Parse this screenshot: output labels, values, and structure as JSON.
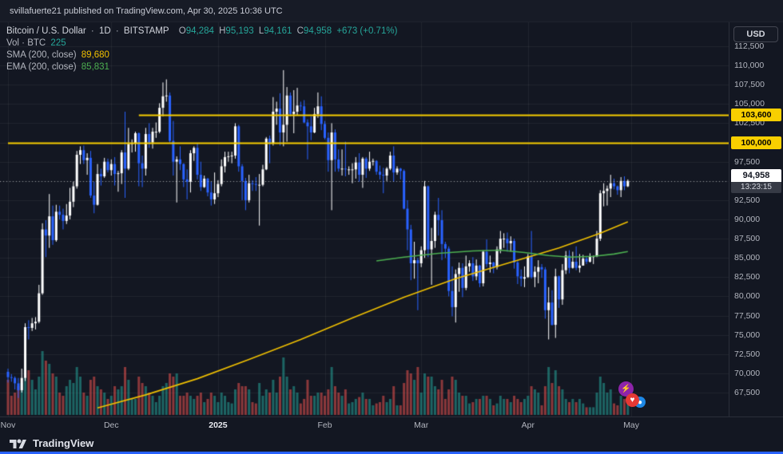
{
  "topbar": {
    "text": "svillafuerte21 published on TradingView.com, Apr 30, 2025 10:36 UTC"
  },
  "toolbar": {
    "currency_button": "USD"
  },
  "legend": {
    "symbol": "Bitcoin / U.S. Dollar",
    "separator": "·",
    "interval": "1D",
    "exchange": "BITSTAMP",
    "ohlc": {
      "o_label": "O",
      "o": "94,284",
      "h_label": "H",
      "h": "95,193",
      "l_label": "L",
      "l": "94,161",
      "c_label": "C",
      "c": "94,958",
      "change": "+673 (+0.71%)"
    },
    "volume": {
      "label": "Vol · BTC",
      "value": "225"
    },
    "sma": {
      "label": "SMA (200, close)",
      "value": "89,680"
    },
    "ema": {
      "label": "EMA (200, close)",
      "value": "85,831"
    }
  },
  "stickers": {
    "lightning": "⚡",
    "heart": "♥",
    "circle": "●"
  },
  "footer": {
    "brand": "TradingView"
  },
  "colors": {
    "background": "#131722",
    "candle_up": "#ffffff",
    "candle_down": "#2962ff",
    "vol_up": "#26a69a",
    "vol_down": "#ef5350",
    "sma": "#f0c000",
    "ema": "#4caf50",
    "ray": "#f8cf00",
    "grid": "rgba(255,255,255,0.06)",
    "last_price_line": "rgba(255,255,255,0.55)",
    "accent_blue": "#2962ff"
  },
  "chart_data": {
    "type": "candlestick",
    "title": "Bitcoin / U.S. Dollar · 1D · BITSTAMP",
    "units": "thousand_usd",
    "start_date": "2024-11-01",
    "interval": "1D",
    "y_axis": {
      "min_visible": 66500,
      "max_visible": 113700,
      "tick_step": 2500,
      "grid": true,
      "side": "right"
    },
    "y_tick_values": [
      112500,
      110000,
      107500,
      105000,
      102500,
      100000,
      97500,
      95000,
      92500,
      90000,
      87500,
      85000,
      82500,
      80000,
      77500,
      75000,
      72500,
      70000,
      67500
    ],
    "y_tick_labels": [
      "112,500",
      "110,000",
      "107,500",
      "105,000",
      "102,500",
      "100,000",
      "97,500",
      "95,000",
      "92,500",
      "90,000",
      "87,500",
      "85,000",
      "82,500",
      "80,000",
      "77,500",
      "75,000",
      "72,500",
      "70,000",
      "67,500"
    ],
    "x_ticks": [
      {
        "label": "Nov",
        "i": 0
      },
      {
        "label": "Dec",
        "i": 30
      },
      {
        "label": "2025",
        "i": 61,
        "year": true
      },
      {
        "label": "Feb",
        "i": 92
      },
      {
        "label": "Mar",
        "i": 120
      },
      {
        "label": "Apr",
        "i": 151
      },
      {
        "label": "May",
        "i": 181
      }
    ],
    "horizontal_rays": [
      {
        "price": 103600,
        "label": "103,600",
        "start_i": 38
      },
      {
        "price": 100000,
        "label": "100,000",
        "start_i": 0
      }
    ],
    "last_price": {
      "value": 94958,
      "label": "94,958",
      "countdown": "13:23:15",
      "direction": "up"
    },
    "sma_points": [
      [
        26,
        65.5
      ],
      [
        40,
        67.2
      ],
      [
        55,
        69.3
      ],
      [
        70,
        71.8
      ],
      [
        85,
        74.4
      ],
      [
        100,
        77.2
      ],
      [
        115,
        79.9
      ],
      [
        130,
        82.3
      ],
      [
        145,
        84.3
      ],
      [
        160,
        86.3
      ],
      [
        172,
        88.2
      ],
      [
        180,
        89.68
      ]
    ],
    "ema_points": [
      [
        107,
        84.6
      ],
      [
        115,
        85.1
      ],
      [
        125,
        85.6
      ],
      [
        135,
        85.9
      ],
      [
        143,
        86.0
      ],
      [
        150,
        85.7
      ],
      [
        157,
        85.3
      ],
      [
        163,
        85.1
      ],
      [
        170,
        85.2
      ],
      [
        176,
        85.5
      ],
      [
        180,
        85.83
      ]
    ],
    "candles": [
      [
        70.2,
        70.6,
        68.8,
        69.5,
        55
      ],
      [
        69.5,
        69.9,
        68.9,
        69.4,
        30
      ],
      [
        69.4,
        69.6,
        67.9,
        68.7,
        35
      ],
      [
        68.7,
        69.4,
        66.8,
        67.8,
        45
      ],
      [
        67.8,
        70.6,
        67.5,
        69.4,
        50
      ],
      [
        69.4,
        76.5,
        69.0,
        76.0,
        95
      ],
      [
        76.0,
        76.9,
        74.4,
        75.9,
        70
      ],
      [
        75.9,
        77.2,
        75.5,
        76.5,
        55
      ],
      [
        76.5,
        77.3,
        75.7,
        76.7,
        40
      ],
      [
        76.7,
        81.5,
        76.5,
        80.4,
        60
      ],
      [
        80.4,
        89.5,
        80.2,
        88.7,
        100
      ],
      [
        88.7,
        89.9,
        85.1,
        87.9,
        85
      ],
      [
        87.9,
        93.3,
        86.3,
        90.4,
        80
      ],
      [
        90.4,
        91.8,
        86.7,
        87.3,
        65
      ],
      [
        87.3,
        91.9,
        87.1,
        91.0,
        60
      ],
      [
        91.0,
        91.8,
        90.0,
        90.6,
        35
      ],
      [
        90.6,
        91.4,
        88.7,
        89.8,
        30
      ],
      [
        89.8,
        92.0,
        89.4,
        90.5,
        45
      ],
      [
        90.5,
        94.1,
        90.0,
        92.3,
        55
      ],
      [
        92.3,
        94.9,
        91.6,
        94.3,
        50
      ],
      [
        94.3,
        98.9,
        94.0,
        98.4,
        75
      ],
      [
        98.4,
        99.5,
        97.2,
        99.0,
        60
      ],
      [
        99.0,
        99.6,
        97.2,
        97.7,
        35
      ],
      [
        97.7,
        98.6,
        95.8,
        98.0,
        30
      ],
      [
        98.0,
        98.9,
        92.8,
        93.1,
        55
      ],
      [
        93.1,
        94.9,
        90.8,
        91.9,
        60
      ],
      [
        91.9,
        97.2,
        91.8,
        95.9,
        45
      ],
      [
        95.9,
        96.6,
        94.4,
        95.6,
        40
      ],
      [
        95.6,
        98.0,
        95.4,
        97.5,
        35
      ],
      [
        97.5,
        97.9,
        96.1,
        96.4,
        25
      ],
      [
        96.4,
        97.8,
        95.7,
        97.2,
        30
      ],
      [
        97.2,
        98.1,
        94.4,
        95.9,
        45
      ],
      [
        95.9,
        96.3,
        93.6,
        96.0,
        40
      ],
      [
        96.0,
        99.0,
        94.6,
        98.7,
        45
      ],
      [
        98.7,
        104.0,
        92.8,
        96.6,
        75
      ],
      [
        96.6,
        101.9,
        96.4,
        99.8,
        55
      ],
      [
        99.8,
        100.4,
        98.7,
        99.9,
        25
      ],
      [
        99.9,
        101.4,
        98.8,
        101.2,
        25
      ],
      [
        101.2,
        101.3,
        94.3,
        97.3,
        60
      ],
      [
        97.3,
        98.3,
        94.2,
        96.6,
        50
      ],
      [
        96.6,
        101.9,
        95.7,
        101.1,
        45
      ],
      [
        101.1,
        102.5,
        99.3,
        100.0,
        35
      ],
      [
        100.0,
        101.9,
        99.2,
        101.4,
        30
      ],
      [
        101.4,
        102.6,
        100.6,
        101.4,
        20
      ],
      [
        101.4,
        105.1,
        101.2,
        104.5,
        30
      ],
      [
        104.5,
        107.8,
        103.4,
        106.0,
        45
      ],
      [
        106.0,
        108.2,
        105.3,
        106.1,
        50
      ],
      [
        106.1,
        106.5,
        100.0,
        100.2,
        65
      ],
      [
        100.2,
        102.8,
        95.7,
        97.5,
        60
      ],
      [
        97.5,
        98.2,
        92.2,
        97.8,
        65
      ],
      [
        97.8,
        99.5,
        96.4,
        97.2,
        30
      ],
      [
        97.2,
        97.3,
        94.2,
        95.2,
        30
      ],
      [
        95.2,
        96.5,
        92.6,
        94.9,
        35
      ],
      [
        94.9,
        99.0,
        93.5,
        98.6,
        30
      ],
      [
        98.6,
        99.5,
        97.6,
        99.3,
        25
      ],
      [
        99.3,
        99.9,
        95.2,
        95.8,
        30
      ],
      [
        95.8,
        97.5,
        93.7,
        94.2,
        35
      ],
      [
        94.2,
        95.7,
        94.1,
        95.3,
        20
      ],
      [
        95.3,
        95.4,
        93.0,
        93.5,
        25
      ],
      [
        93.5,
        94.9,
        91.8,
        92.6,
        35
      ],
      [
        92.6,
        96.1,
        92.0,
        93.4,
        30
      ],
      [
        93.4,
        95.1,
        92.9,
        94.6,
        20
      ],
      [
        94.6,
        97.8,
        94.3,
        96.9,
        35
      ],
      [
        96.9,
        98.8,
        96.1,
        98.1,
        30
      ],
      [
        98.1,
        98.8,
        97.5,
        98.2,
        20
      ],
      [
        98.2,
        98.8,
        97.3,
        98.3,
        18
      ],
      [
        98.3,
        102.5,
        97.9,
        102.1,
        40
      ],
      [
        102.1,
        102.3,
        96.2,
        96.9,
        50
      ],
      [
        96.9,
        97.2,
        92.5,
        95.0,
        45
      ],
      [
        95.0,
        95.4,
        91.2,
        92.5,
        45
      ],
      [
        92.5,
        95.8,
        92.2,
        94.7,
        40
      ],
      [
        94.7,
        95.1,
        93.7,
        94.6,
        20
      ],
      [
        94.6,
        95.5,
        93.7,
        94.5,
        18
      ],
      [
        94.5,
        95.9,
        89.2,
        94.5,
        50
      ],
      [
        94.5,
        97.1,
        94.3,
        96.5,
        30
      ],
      [
        96.5,
        100.7,
        96.4,
        100.5,
        40
      ],
      [
        100.5,
        100.9,
        97.3,
        99.9,
        35
      ],
      [
        99.9,
        105.9,
        99.6,
        104.0,
        55
      ],
      [
        104.0,
        105.3,
        102.3,
        104.4,
        35
      ],
      [
        104.4,
        106.4,
        99.6,
        101.3,
        60
      ],
      [
        101.3,
        109.4,
        99.5,
        102.3,
        90
      ],
      [
        102.3,
        107.2,
        100.1,
        106.1,
        60
      ],
      [
        106.1,
        106.5,
        103.4,
        103.7,
        40
      ],
      [
        103.7,
        106.8,
        101.2,
        104.0,
        45
      ],
      [
        104.0,
        107.1,
        103.5,
        104.8,
        35
      ],
      [
        104.8,
        105.3,
        104.1,
        104.7,
        18
      ],
      [
        104.7,
        105.5,
        102.5,
        102.6,
        25
      ],
      [
        102.6,
        103.0,
        97.8,
        102.1,
        55
      ],
      [
        102.1,
        103.4,
        100.3,
        101.3,
        30
      ],
      [
        101.3,
        104.5,
        101.2,
        103.7,
        30
      ],
      [
        103.7,
        106.5,
        103.2,
        104.7,
        35
      ],
      [
        104.7,
        106.0,
        101.6,
        102.4,
        35
      ],
      [
        102.4,
        102.8,
        100.4,
        100.6,
        30
      ],
      [
        100.6,
        101.3,
        96.2,
        97.7,
        40
      ],
      [
        97.7,
        102.5,
        91.2,
        101.3,
        75
      ],
      [
        101.3,
        101.7,
        96.2,
        97.8,
        45
      ],
      [
        97.8,
        99.1,
        96.2,
        96.6,
        35
      ],
      [
        96.6,
        99.1,
        95.7,
        96.6,
        30
      ],
      [
        96.6,
        100.1,
        95.6,
        96.5,
        40
      ],
      [
        96.5,
        96.9,
        95.8,
        96.5,
        18
      ],
      [
        96.5,
        97.3,
        94.7,
        96.5,
        20
      ],
      [
        96.5,
        98.1,
        95.3,
        97.4,
        25
      ],
      [
        97.4,
        98.6,
        94.9,
        95.8,
        28
      ],
      [
        95.8,
        98.1,
        94.1,
        97.9,
        35
      ],
      [
        97.9,
        98.1,
        95.4,
        96.6,
        25
      ],
      [
        96.6,
        98.8,
        96.3,
        97.5,
        25
      ],
      [
        97.5,
        97.9,
        97.0,
        97.6,
        15
      ],
      [
        97.6,
        97.7,
        95.8,
        96.2,
        18
      ],
      [
        96.2,
        97.0,
        95.2,
        95.8,
        20
      ],
      [
        95.8,
        96.7,
        93.4,
        95.7,
        30
      ],
      [
        95.7,
        96.8,
        95.0,
        96.6,
        20
      ],
      [
        96.6,
        98.8,
        96.4,
        98.3,
        25
      ],
      [
        98.3,
        99.5,
        94.9,
        96.1,
        45
      ],
      [
        96.1,
        96.9,
        95.8,
        96.6,
        15
      ],
      [
        96.6,
        96.7,
        95.2,
        96.3,
        15
      ],
      [
        96.3,
        96.5,
        91.3,
        91.4,
        50
      ],
      [
        91.4,
        92.5,
        86.0,
        88.7,
        70
      ],
      [
        88.7,
        89.3,
        82.1,
        84.3,
        65
      ],
      [
        84.3,
        87.1,
        82.3,
        84.7,
        55
      ],
      [
        84.7,
        85.0,
        78.2,
        84.3,
        75
      ],
      [
        84.3,
        86.5,
        83.8,
        86.0,
        35
      ],
      [
        86.0,
        95.0,
        85.0,
        94.3,
        65
      ],
      [
        94.3,
        94.4,
        85.1,
        86.1,
        60
      ],
      [
        86.1,
        88.9,
        81.5,
        87.2,
        60
      ],
      [
        87.2,
        91.0,
        86.3,
        90.6,
        45
      ],
      [
        90.6,
        92.8,
        87.9,
        89.9,
        40
      ],
      [
        89.9,
        91.2,
        84.7,
        86.8,
        55
      ],
      [
        86.8,
        87.1,
        85.0,
        86.2,
        25
      ],
      [
        86.2,
        86.5,
        80.0,
        80.7,
        40
      ],
      [
        80.7,
        83.9,
        77.4,
        78.6,
        60
      ],
      [
        78.6,
        83.5,
        76.6,
        82.9,
        55
      ],
      [
        82.9,
        84.4,
        80.6,
        83.7,
        35
      ],
      [
        83.7,
        84.3,
        79.9,
        81.1,
        30
      ],
      [
        81.1,
        85.3,
        80.8,
        83.9,
        30
      ],
      [
        83.9,
        84.7,
        83.2,
        84.3,
        18
      ],
      [
        84.3,
        85.1,
        82.0,
        82.6,
        20
      ],
      [
        82.6,
        84.8,
        82.1,
        84.0,
        25
      ],
      [
        84.0,
        84.1,
        81.2,
        81.7,
        25
      ],
      [
        81.7,
        86.0,
        81.3,
        85.8,
        30
      ],
      [
        85.8,
        87.4,
        83.8,
        84.2,
        30
      ],
      [
        84.2,
        85.3,
        83.1,
        84.4,
        25
      ],
      [
        84.4,
        84.5,
        83.0,
        83.8,
        15
      ],
      [
        83.8,
        86.5,
        83.5,
        86.1,
        18
      ],
      [
        86.1,
        88.5,
        85.6,
        87.5,
        30
      ],
      [
        87.5,
        88.2,
        86.3,
        87.5,
        25
      ],
      [
        87.5,
        88.3,
        85.8,
        86.9,
        25
      ],
      [
        86.9,
        87.8,
        85.8,
        87.2,
        20
      ],
      [
        87.2,
        87.5,
        83.6,
        84.4,
        30
      ],
      [
        84.4,
        84.6,
        81.6,
        82.6,
        25
      ],
      [
        82.6,
        83.5,
        81.3,
        82.3,
        20
      ],
      [
        82.3,
        83.9,
        81.2,
        82.5,
        25
      ],
      [
        82.5,
        85.5,
        82.4,
        85.2,
        30
      ],
      [
        85.2,
        88.5,
        82.3,
        82.5,
        45
      ],
      [
        82.5,
        83.9,
        81.2,
        83.2,
        40
      ],
      [
        83.2,
        84.7,
        81.7,
        83.8,
        35
      ],
      [
        83.8,
        84.2,
        82.4,
        83.5,
        15
      ],
      [
        83.5,
        83.8,
        77.1,
        78.2,
        45
      ],
      [
        78.2,
        81.2,
        74.4,
        79.2,
        75
      ],
      [
        79.2,
        80.8,
        76.2,
        76.3,
        50
      ],
      [
        76.3,
        83.6,
        74.6,
        82.6,
        70
      ],
      [
        82.6,
        82.7,
        78.5,
        79.6,
        45
      ],
      [
        79.6,
        84.2,
        78.9,
        83.4,
        40
      ],
      [
        83.4,
        85.9,
        82.9,
        85.3,
        25
      ],
      [
        85.3,
        86.0,
        83.0,
        83.7,
        20
      ],
      [
        83.7,
        85.8,
        83.6,
        84.5,
        25
      ],
      [
        84.5,
        86.5,
        83.4,
        83.7,
        20
      ],
      [
        83.7,
        85.5,
        83.1,
        84.0,
        25
      ],
      [
        84.0,
        85.4,
        84.0,
        84.9,
        18
      ],
      [
        84.9,
        85.2,
        84.2,
        84.5,
        12
      ],
      [
        84.5,
        85.6,
        84.4,
        85.2,
        12
      ],
      [
        85.2,
        85.3,
        84.2,
        85.2,
        12
      ],
      [
        85.2,
        88.5,
        85.1,
        87.5,
        35
      ],
      [
        87.5,
        93.8,
        87.2,
        93.4,
        60
      ],
      [
        93.4,
        94.7,
        91.7,
        93.7,
        50
      ],
      [
        93.7,
        94.4,
        91.8,
        94.0,
        35
      ],
      [
        94.0,
        95.8,
        92.9,
        94.7,
        40
      ],
      [
        94.7,
        95.3,
        93.9,
        94.3,
        18
      ],
      [
        94.3,
        94.4,
        93.2,
        93.8,
        15
      ],
      [
        93.8,
        95.5,
        92.9,
        95.0,
        30
      ],
      [
        95.0,
        95.6,
        93.8,
        94.3,
        25
      ],
      [
        94.3,
        95.2,
        94.2,
        95.0,
        20
      ]
    ]
  }
}
